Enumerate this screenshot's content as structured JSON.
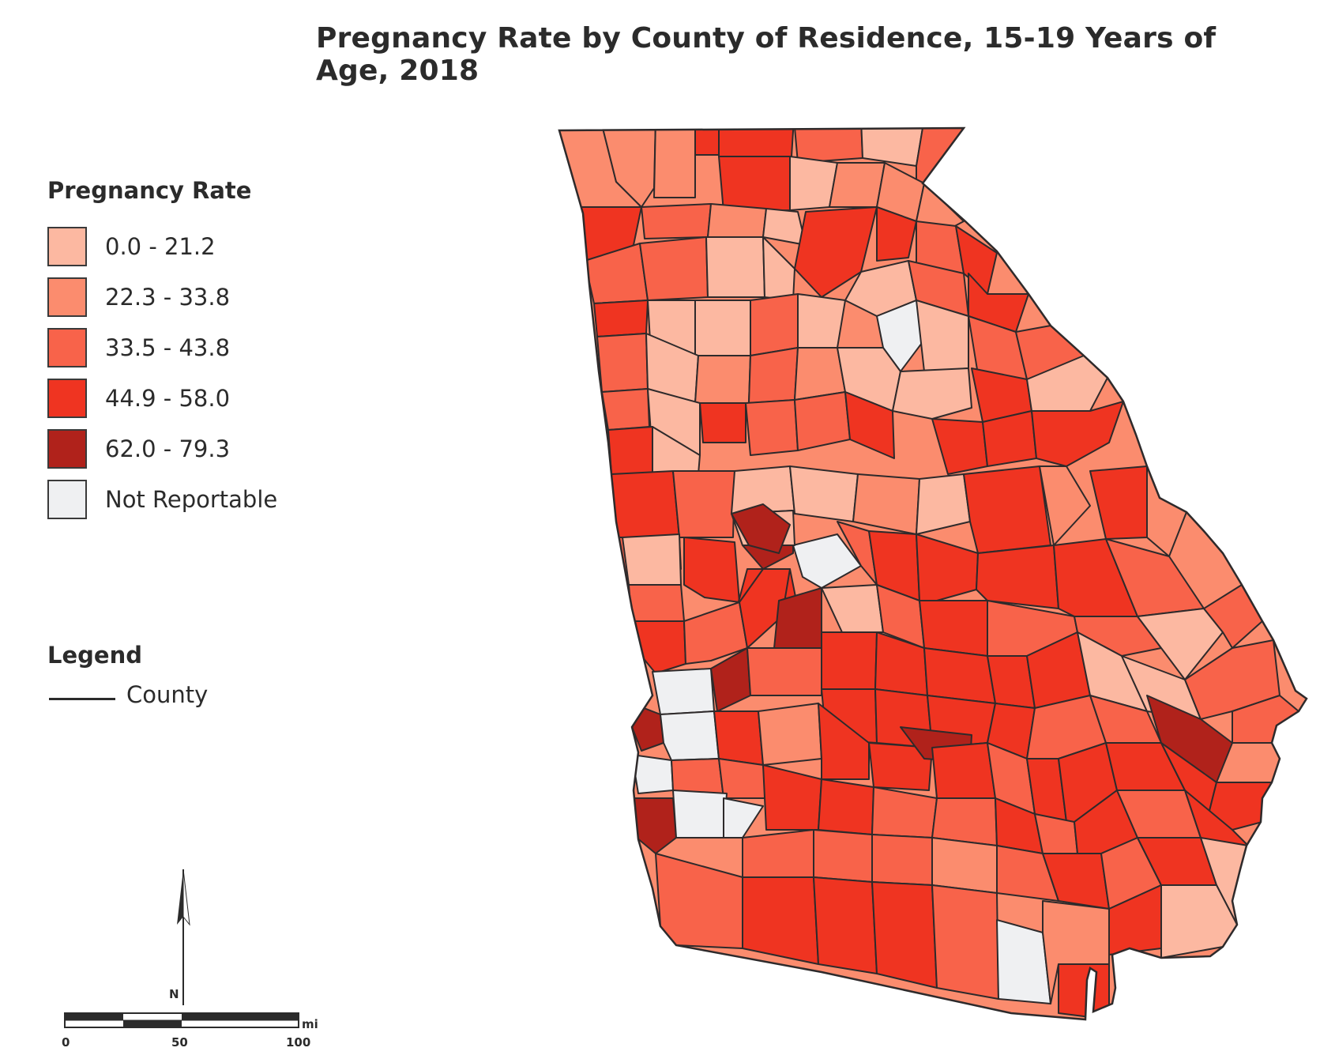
{
  "title": "Pregnancy Rate by County of Residence, 15-19 Years of Age, 2018",
  "legend": {
    "title": "Pregnancy Rate",
    "items": [
      {
        "label": "0.0 - 21.2",
        "color": "#fcb8a1"
      },
      {
        "label": "22.3 - 33.8",
        "color": "#fb8c6e"
      },
      {
        "label": "33.5 - 43.8",
        "color": "#f8634a"
      },
      {
        "label": "44.9 - 58.0",
        "color": "#ef3421"
      },
      {
        "label": "62.0 - 79.3",
        "color": "#b0221b"
      },
      {
        "label": "Not Reportable",
        "color": "#eff0f2"
      }
    ]
  },
  "legend2": {
    "title": "Legend",
    "county_label": "County"
  },
  "north_arrow": {
    "label": "N"
  },
  "scale_bar": {
    "unit": "mi",
    "ticks": [
      "0",
      "50",
      "100"
    ]
  },
  "map": {
    "border_color": "#2e2a2b",
    "background": "#ffffff"
  }
}
